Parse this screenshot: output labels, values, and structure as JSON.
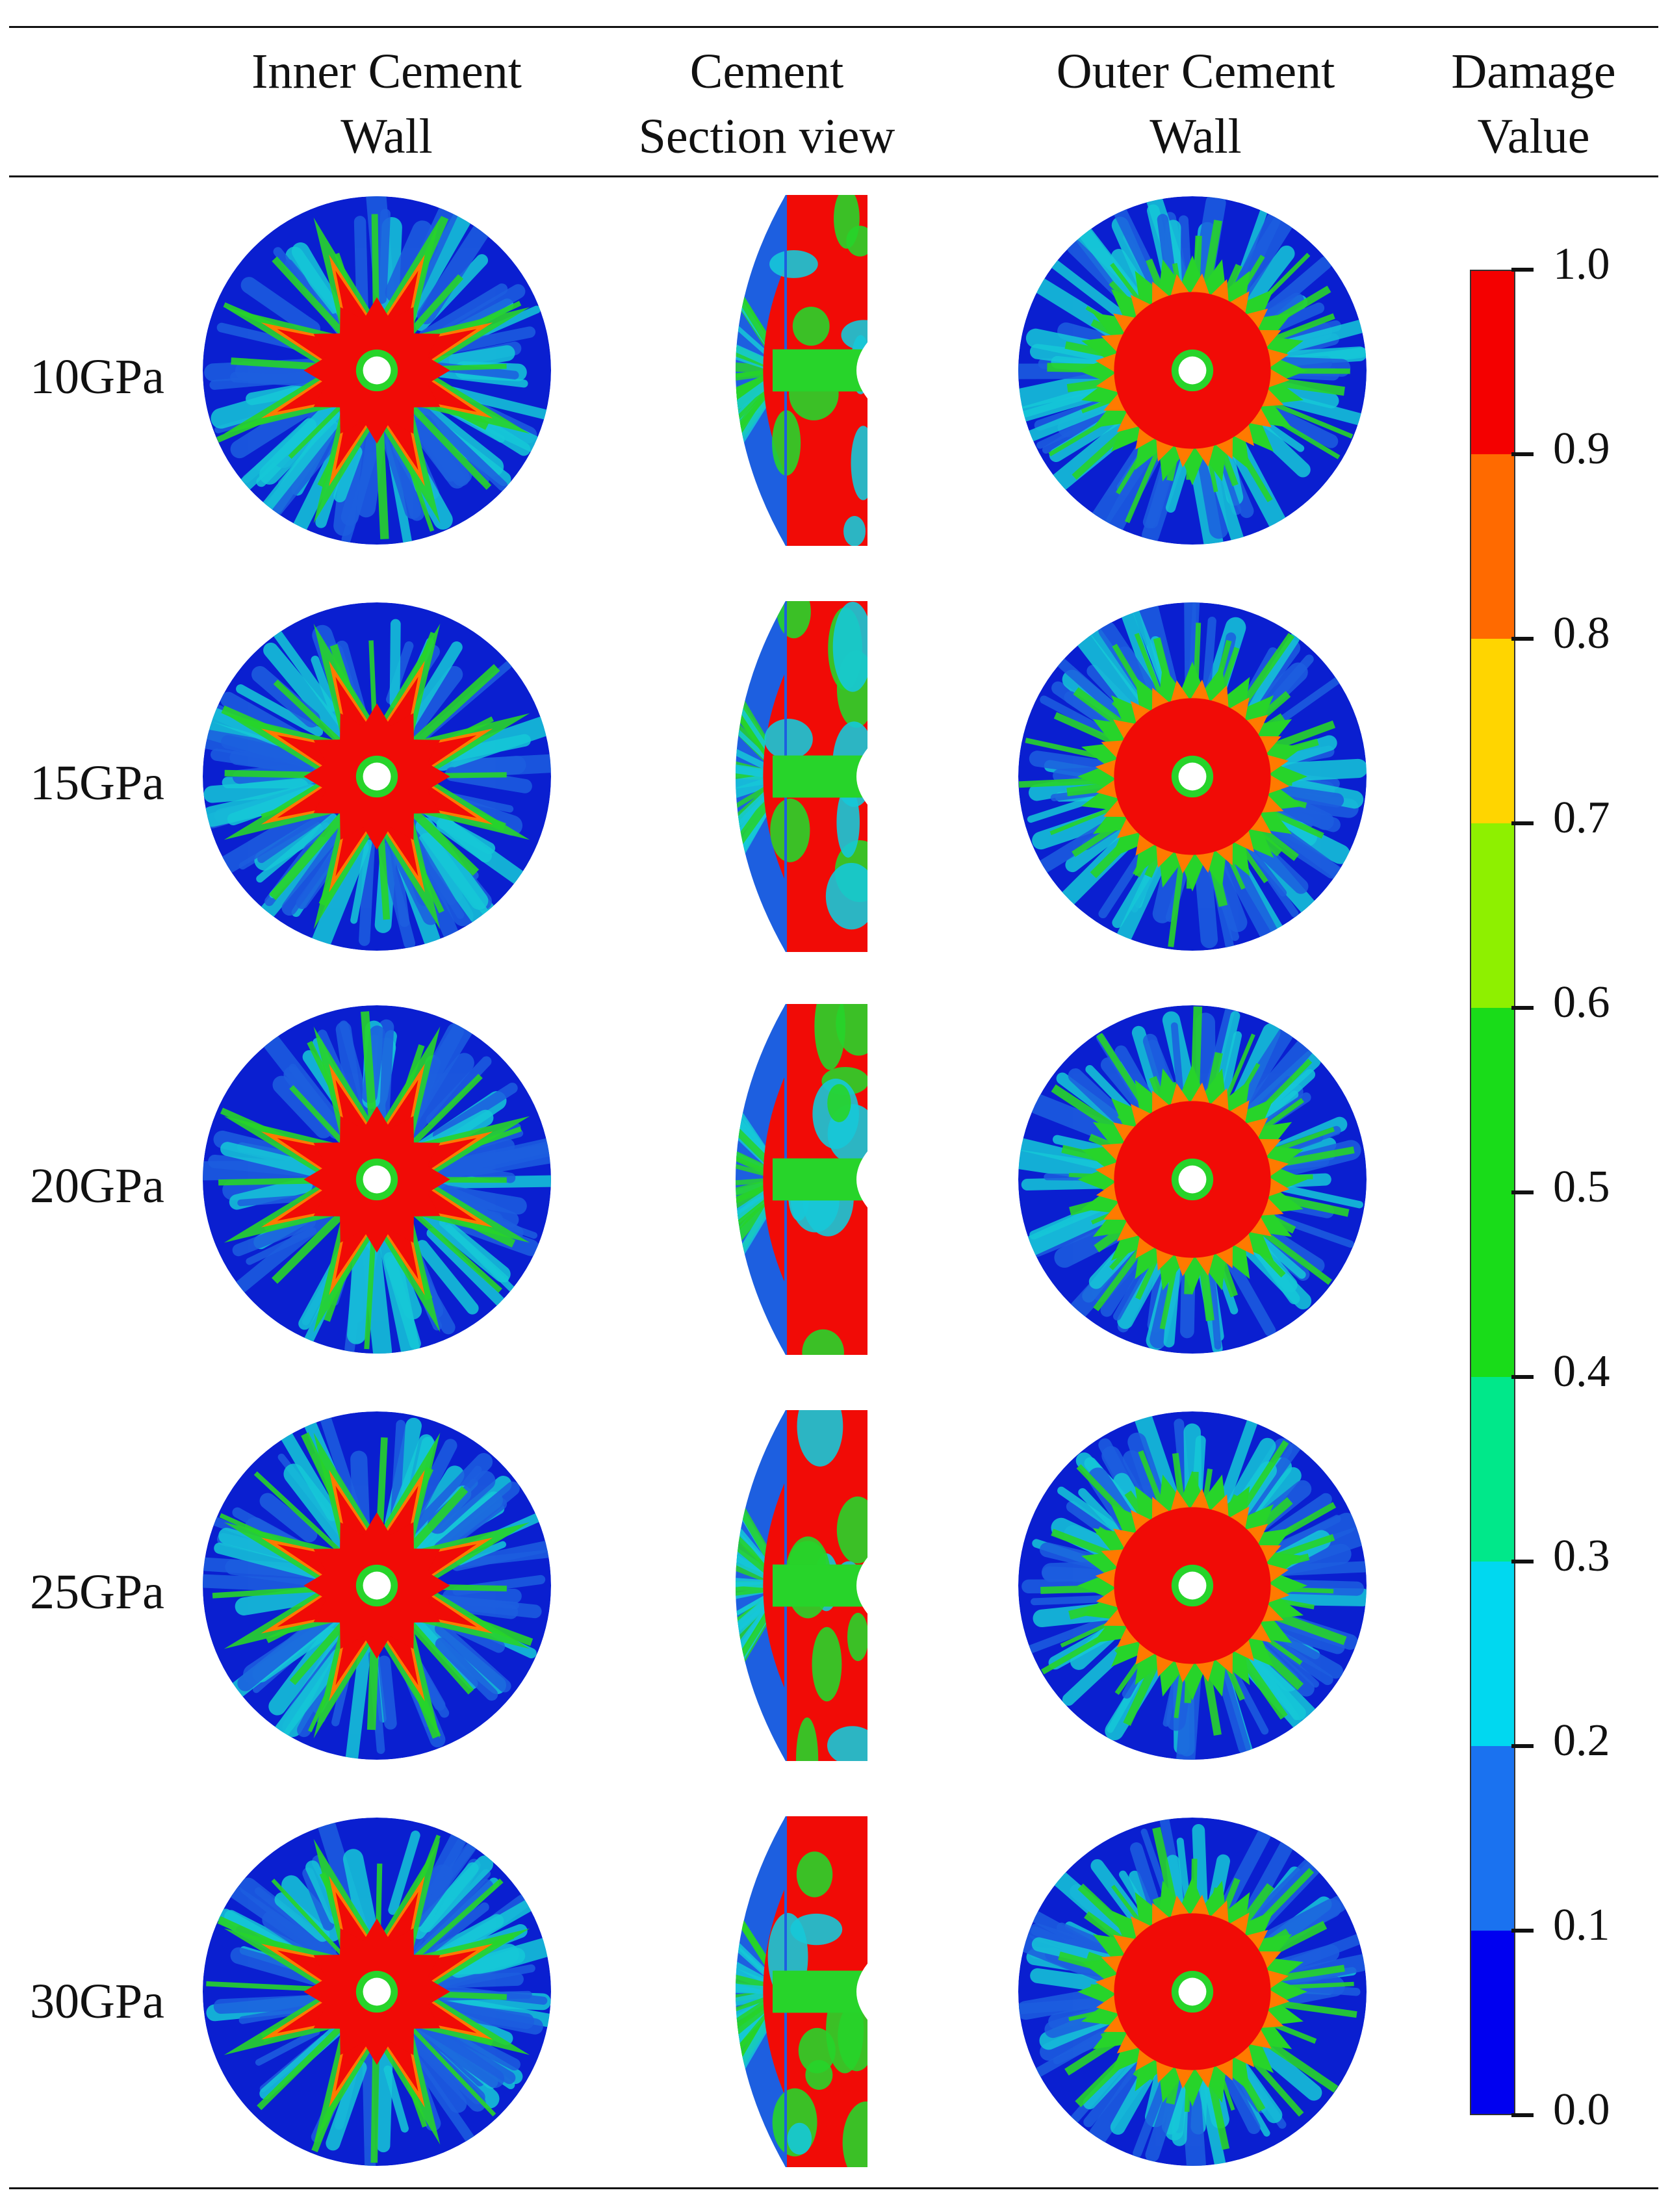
{
  "headers": {
    "inner": [
      "Inner Cement",
      "Wall"
    ],
    "section": [
      "Cement",
      "Section view"
    ],
    "outer": [
      "Outer Cement",
      "Wall"
    ],
    "damage": [
      "Damage",
      "Value"
    ]
  },
  "rows": [
    {
      "label": "10GPa"
    },
    {
      "label": "15GPa"
    },
    {
      "label": "20GPa"
    },
    {
      "label": "25GPa"
    },
    {
      "label": "30GPa"
    }
  ],
  "colorbar": {
    "ticks": [
      "1.0",
      "0.9",
      "0.8",
      "0.7",
      "0.6",
      "0.5",
      "0.4",
      "0.3",
      "0.2",
      "0.1",
      "0.0"
    ],
    "bands_top_to_bottom": [
      "#f40000",
      "#ff6a00",
      "#ffd500",
      "#8ef000",
      "#19dc19",
      "#00e88a",
      "#00d8f0",
      "#1a72f0",
      "#0000f0"
    ]
  },
  "colors": {
    "damage_red": "#f10b06",
    "damage_orange": "#ff7a00",
    "damage_green": "#27d42a",
    "damage_cyan": "#16c8d8",
    "damage_blue": "#1d5fe0",
    "damage_navy": "#0a1fd0"
  }
}
